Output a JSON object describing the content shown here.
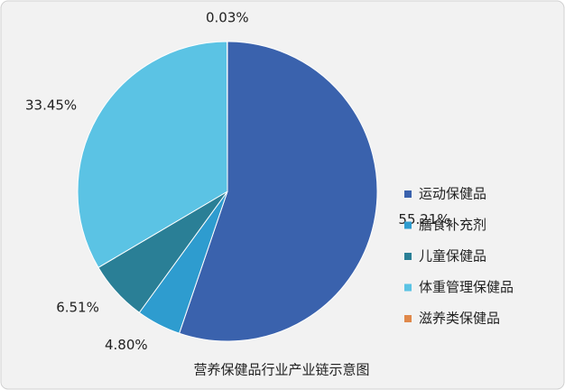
{
  "chart_data": {
    "type": "pie",
    "title": "营养保健品行业产业链示意图",
    "categories": [
      "运动保健品",
      "膳食补充剂",
      "儿童保健品",
      "体重管理保健品",
      "滋养类保健品"
    ],
    "values": [
      55.21,
      4.8,
      6.51,
      33.45,
      0.03
    ],
    "value_labels": [
      "55.21%",
      "4.80%",
      "6.51%",
      "33.45%",
      "0.03%"
    ],
    "colors": [
      "#3a62ad",
      "#2e9ccf",
      "#2a7f96",
      "#5bc3e4",
      "#e0884a"
    ],
    "legend": "right"
  }
}
